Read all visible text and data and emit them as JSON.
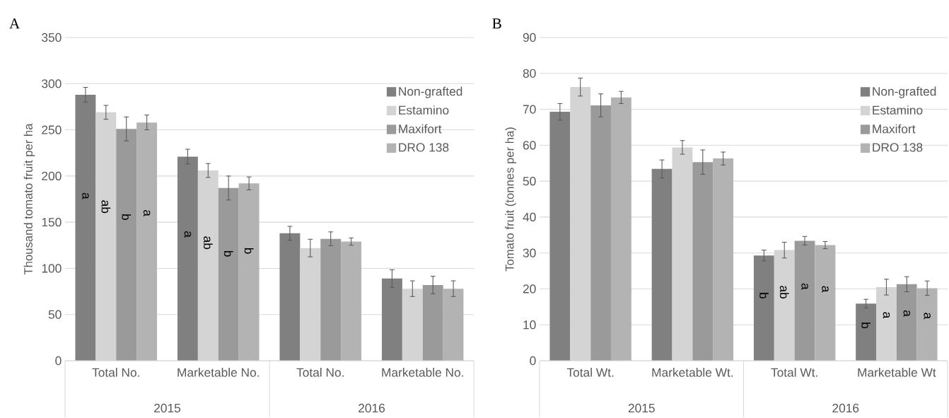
{
  "chart_data": [
    {
      "type": "bar",
      "title": "A",
      "ylabel": "Thousand tomato fruit per ha",
      "categories": [
        "Total No.",
        "Marketable No.",
        "Total No.",
        "Marketable No."
      ],
      "annotations": [
        "2015",
        "2016"
      ],
      "ylim": [
        0,
        350
      ],
      "yticks": [
        0,
        50,
        100,
        150,
        200,
        250,
        300,
        350
      ],
      "grid": "y",
      "legend": "top right",
      "series": [
        {
          "name": "Non-grafted",
          "color": "#808080",
          "values": [
            288,
            221,
            138,
            89
          ],
          "errors": [
            8,
            8,
            7.5,
            9.5
          ],
          "value_labels": [
            "a",
            "a",
            null,
            null
          ]
        },
        {
          "name": "Estamino",
          "color": "#d4d4d4",
          "values": [
            269,
            206,
            122,
            78
          ],
          "errors": [
            7.5,
            7.5,
            9.5,
            8.5
          ],
          "value_labels": [
            "ab",
            "ab",
            null,
            null
          ]
        },
        {
          "name": "Maxifort",
          "color": "#9a9a9a",
          "values": [
            251,
            187,
            132,
            82
          ],
          "errors": [
            13,
            13,
            7.5,
            9.5
          ],
          "value_labels": [
            "b",
            "b",
            null,
            null
          ]
        },
        {
          "name": "DRO 138",
          "color": "#b3b3b3",
          "values": [
            258,
            192,
            129,
            78
          ],
          "errors": [
            8,
            7,
            4,
            8.5
          ],
          "value_labels": [
            "a",
            "b",
            null,
            null
          ]
        }
      ]
    },
    {
      "type": "bar",
      "title": "B",
      "ylabel": "Tomato fruit (tonnes per ha)",
      "categories": [
        "Total Wt.",
        "Marketable Wt.",
        "Total Wt.",
        "Marketable Wt"
      ],
      "annotations": [
        "2015",
        "2016"
      ],
      "ylim": [
        0,
        90
      ],
      "yticks": [
        0,
        10,
        20,
        30,
        40,
        50,
        60,
        70,
        80,
        90
      ],
      "grid": "y",
      "legend": "top right",
      "series": [
        {
          "name": "Non-grafted",
          "color": "#808080",
          "values": [
            69.3,
            53.4,
            29.3,
            15.9
          ],
          "errors": [
            2.3,
            2.5,
            1.5,
            1.2
          ],
          "value_labels": [
            null,
            null,
            "b",
            "b"
          ]
        },
        {
          "name": "Estamino",
          "color": "#d4d4d4",
          "values": [
            76.2,
            59.4,
            30.8,
            20.5
          ],
          "errors": [
            2.5,
            1.9,
            2.2,
            2.2
          ],
          "value_labels": [
            null,
            null,
            "ab",
            "a"
          ]
        },
        {
          "name": "Maxifort",
          "color": "#9a9a9a",
          "values": [
            71.1,
            55.3,
            33.4,
            21.3
          ],
          "errors": [
            3.2,
            3.4,
            1.2,
            2.1
          ],
          "value_labels": [
            null,
            null,
            "a",
            "a"
          ]
        },
        {
          "name": "DRO 138",
          "color": "#b3b3b3",
          "values": [
            73.3,
            56.3,
            32.2,
            20.2
          ],
          "errors": [
            1.7,
            1.8,
            1,
            2
          ],
          "value_labels": [
            null,
            null,
            "a",
            "a"
          ]
        }
      ]
    }
  ]
}
